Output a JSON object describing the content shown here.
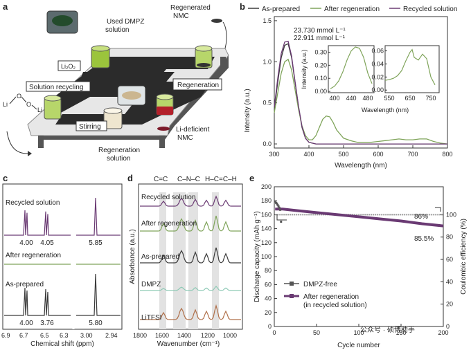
{
  "panel_a": {
    "label": "a",
    "tags": {
      "used_dmpz": "Used DMPZ",
      "used_dmpz2": "solution",
      "regen_nmc": "Regenerated",
      "regen_nmc2": "NMC",
      "li2o2": "Li₂O₂",
      "solution_recycling": "Solution recycling",
      "regeneration": "Regeneration",
      "stirring": "Stirring",
      "li_deficient": "Li-deficient",
      "li_deficient2": "NMC",
      "regen_solution": "Regeneration",
      "regen_solution2": "solution",
      "li": "Li",
      "o": "O"
    },
    "colors": {
      "belt": "#2b2b2b",
      "green": "#9bc43c",
      "red": "#b3202a",
      "cream": "#efe6cf"
    }
  },
  "panel_b": {
    "label": "b",
    "legend": [
      "As-prepared",
      "After regeneration",
      "Recycled solution"
    ],
    "colors": {
      "as_prepared": "#3a3a3a",
      "after_regen": "#7fa45a",
      "recycled": "#6a3a73"
    },
    "annot1": "23.730 mmol L⁻¹",
    "annot2": "22.911 mmol L⁻¹",
    "chart_data": {
      "type": "line",
      "xlabel": "Wavelength (nm)",
      "ylabel": "Intensity (a.u.)",
      "xlim": [
        300,
        800
      ],
      "ylim": [
        -0.05,
        1.55
      ],
      "xticks": [
        300,
        400,
        500,
        600,
        700,
        800
      ],
      "yticks": [
        "0.0",
        "0.5",
        "1.0",
        "1.5"
      ],
      "series": [
        {
          "name": "As-prepared",
          "x": [
            300,
            310,
            320,
            330,
            340,
            350,
            360,
            370,
            380,
            390,
            400,
            420,
            450,
            500,
            600,
            700,
            800
          ],
          "values": [
            0.42,
            0.75,
            1.05,
            1.2,
            1.22,
            1.05,
            0.75,
            0.45,
            0.2,
            0.07,
            0.02,
            0.0,
            0.0,
            0.0,
            0.0,
            0.0,
            0.0
          ]
        },
        {
          "name": "After regeneration",
          "x": [
            300,
            310,
            320,
            330,
            340,
            350,
            360,
            370,
            380,
            390,
            400,
            410,
            420,
            430,
            440,
            450,
            460,
            470,
            480,
            500,
            520,
            540,
            560,
            580,
            600,
            620,
            640,
            660,
            680,
            700,
            720,
            740,
            760,
            780,
            800
          ],
          "values": [
            0.38,
            0.62,
            0.86,
            1.0,
            1.03,
            0.9,
            0.66,
            0.42,
            0.22,
            0.1,
            0.05,
            0.05,
            0.1,
            0.2,
            0.3,
            0.34,
            0.33,
            0.26,
            0.17,
            0.07,
            0.04,
            0.02,
            0.02,
            0.02,
            0.03,
            0.04,
            0.05,
            0.06,
            0.05,
            0.05,
            0.06,
            0.06,
            0.03,
            0.01,
            0.0
          ]
        },
        {
          "name": "Recycled solution",
          "x": [
            300,
            310,
            320,
            330,
            340,
            350,
            360,
            370,
            380,
            390,
            400,
            420,
            450,
            500,
            600,
            700,
            800
          ],
          "values": [
            0.45,
            0.8,
            1.1,
            1.24,
            1.25,
            1.07,
            0.76,
            0.46,
            0.21,
            0.07,
            0.02,
            0.0,
            0.0,
            0.0,
            0.0,
            0.0,
            0.0
          ]
        }
      ]
    },
    "inset1": {
      "xticks": [
        400,
        440,
        480
      ],
      "yticks": [
        "0.00",
        "0.10",
        "0.20",
        "0.30"
      ],
      "x": [
        390,
        400,
        410,
        420,
        430,
        440,
        450,
        460,
        470,
        480,
        490
      ],
      "values": [
        0.02,
        0.04,
        0.08,
        0.15,
        0.24,
        0.31,
        0.34,
        0.33,
        0.26,
        0.14,
        0.06
      ],
      "xlim": [
        385,
        495
      ],
      "ylim": [
        -0.01,
        0.35
      ]
    },
    "inset2": {
      "xticks": [
        550,
        650,
        750
      ],
      "yticks": [
        "0.00",
        "0.02",
        "0.04",
        "0.06"
      ],
      "x": [
        530,
        550,
        570,
        590,
        610,
        630,
        650,
        660,
        670,
        690,
        710,
        730,
        750,
        770
      ],
      "values": [
        0.015,
        0.016,
        0.018,
        0.022,
        0.03,
        0.045,
        0.058,
        0.062,
        0.05,
        0.046,
        0.055,
        0.048,
        0.02,
        0.008
      ],
      "xlim": [
        530,
        790
      ],
      "ylim": [
        -0.004,
        0.068
      ],
      "ylabel": "Intensity (a.u.)",
      "xlabel": "Wavelength (nm)"
    }
  },
  "panel_c": {
    "label": "c",
    "xlabel": "Chemical shift (ppm)",
    "xticks_left": [
      "6.9",
      "6.7",
      "6.5",
      "6.3"
    ],
    "xticks_right": [
      "3.00",
      "2.94"
    ],
    "spectra": [
      {
        "name": "Recycled solution",
        "color": "#6a3a73",
        "int": [
          "4.00",
          "4.05",
          "5.85"
        ]
      },
      {
        "name": "After regeneration",
        "color": "#7fa45a",
        "int": []
      },
      {
        "name": "As-prepared",
        "color": "#3a3a3a",
        "int": [
          "4.00",
          "3.76",
          "5.80"
        ]
      }
    ],
    "int_color": "#b3202a"
  },
  "panel_d": {
    "label": "d",
    "ylabel": "Absorbance (a.u.)",
    "xlabel": "Wavenumber (cm⁻¹)",
    "xticks": [
      "1800",
      "1600",
      "1400",
      "1200",
      "1000"
    ],
    "bonds": [
      "C=C",
      "C–N–C",
      "H–C=C–H"
    ],
    "traces": [
      {
        "name": "Recycled solution",
        "color": "#6a3a73"
      },
      {
        "name": "After regeneration",
        "color": "#7fa45a"
      },
      {
        "name": "As-prepared",
        "color": "#3a3a3a"
      },
      {
        "name": "DMPZ",
        "color": "#8dc9b5"
      },
      {
        "name": "LiTFSI",
        "color": "#b0704a"
      }
    ]
  },
  "panel_e": {
    "label": "e",
    "legend": [
      "DMPZ-free",
      "After regeneration",
      "(in recycled solution)"
    ],
    "annot_ce": "86%",
    "annot_cap": "85.5%",
    "colors": {
      "free": "#555555",
      "regen": "#6a3a73",
      "ce": "#999999"
    },
    "chart_data": {
      "type": "scatter",
      "xlabel": "Cycle number",
      "ylabel": "Discharge capacity (mAh g⁻¹)",
      "y2label": "Coulombic efficiency (%)",
      "xlim": [
        0,
        200
      ],
      "ylim": [
        0,
        200
      ],
      "y2lim": [
        0,
        125
      ],
      "xticks": [
        0,
        50,
        100,
        150,
        200
      ],
      "yticks": [
        0,
        20,
        40,
        60,
        80,
        100,
        120,
        140,
        160,
        180,
        200
      ],
      "y2ticks": [
        0,
        20,
        40,
        60,
        80,
        100
      ],
      "series": [
        {
          "name": "DMPZ-free",
          "x": [
            1,
            2,
            3,
            4,
            5,
            6,
            7,
            8
          ],
          "values": [
            179,
            177,
            176,
            174,
            172,
            170,
            167,
            150
          ]
        },
        {
          "name": "After regeneration (in recycled solution)",
          "x": [
            1,
            10,
            25,
            50,
            75,
            100,
            125,
            150,
            175,
            200
          ],
          "values": [
            168,
            168,
            166,
            163,
            160,
            157,
            154,
            151,
            147,
            144
          ]
        },
        {
          "name": "Coulombic efficiency",
          "x": [
            1,
            50,
            100,
            150,
            200
          ],
          "values": [
            100,
            100,
            100,
            100,
            100
          ]
        }
      ]
    }
  },
  "watermark": "公众号 · 硕博助手"
}
